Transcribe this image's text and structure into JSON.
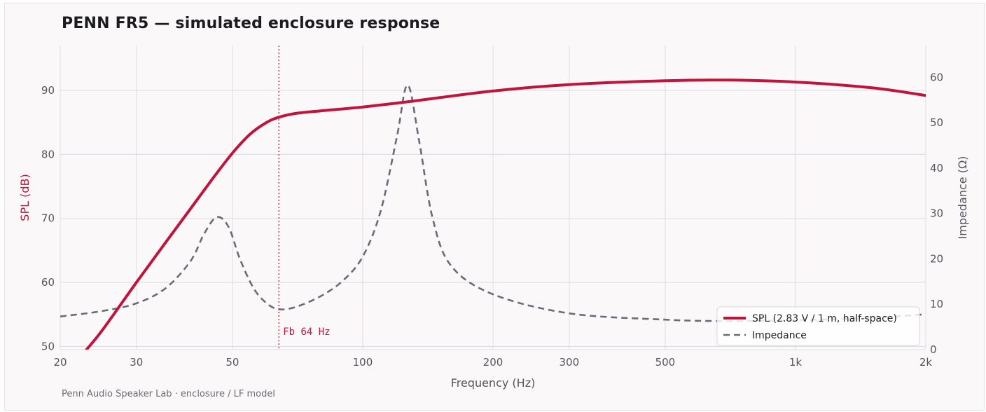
{
  "title": "PENN FR5 — simulated enclosure response",
  "footer": "Penn Audio Speaker Lab · enclosure / LF model",
  "colors": {
    "spl": "#c0143c",
    "impedance": "#6b6b78",
    "grid": "#dedbe2",
    "background": "#fbf8f9"
  },
  "chart_data": {
    "type": "line",
    "title": "PENN FR5 — simulated enclosure response",
    "xlabel": "Frequency  (Hz)",
    "ylabel": "SPL  (dB)",
    "y2label": "Impedance  (Ω)",
    "xscale": "log",
    "xlim": [
      20,
      2000
    ],
    "ylim": [
      49.5,
      97
    ],
    "y2lim": [
      0,
      67
    ],
    "xticks": [
      20,
      30,
      50,
      100,
      200,
      300,
      500,
      1000,
      2000
    ],
    "xtick_labels": [
      "20",
      "30",
      "50",
      "100",
      "200",
      "300",
      "500",
      "1k",
      "2k"
    ],
    "yticks": [
      50,
      60,
      70,
      80,
      90
    ],
    "y2ticks": [
      0,
      10,
      20,
      30,
      40,
      50,
      60
    ],
    "grid": true,
    "legend_position": "bottom-right",
    "annotation": {
      "label": "Fb 64 Hz",
      "x": 64
    },
    "series": [
      {
        "name": "SPL  (2.83 V / 1 m, half-space)",
        "axis": "left",
        "style": "solid",
        "x": [
          23,
          25,
          30,
          35,
          40,
          45,
          50,
          55,
          60,
          64,
          70,
          80,
          100,
          130,
          200,
          300,
          500,
          700,
          1000,
          1500,
          2000
        ],
        "y": [
          49.5,
          52.5,
          60,
          66.2,
          71.5,
          76.2,
          80.2,
          83.2,
          85,
          85.8,
          86.4,
          86.8,
          87.4,
          88.3,
          89.9,
          90.9,
          91.5,
          91.6,
          91.3,
          90.4,
          89.2
        ]
      },
      {
        "name": "Impedance",
        "axis": "right",
        "style": "dashed",
        "x": [
          20,
          25,
          30,
          35,
          40,
          43,
          46,
          49,
          52,
          56,
          60,
          64,
          70,
          80,
          90,
          100,
          110,
          120,
          127,
          135,
          145,
          160,
          200,
          300,
          500,
          700,
          1000,
          1500,
          2000
        ],
        "y": [
          7.3,
          8.5,
          10.2,
          13.5,
          19.5,
          25.5,
          29.2,
          27,
          20,
          13.5,
          10.2,
          8.9,
          9.4,
          11.8,
          15.2,
          20.5,
          30.5,
          47,
          58.3,
          46,
          29,
          18.5,
          12.2,
          8,
          6.6,
          6.3,
          6.5,
          7,
          7.8
        ]
      }
    ]
  }
}
